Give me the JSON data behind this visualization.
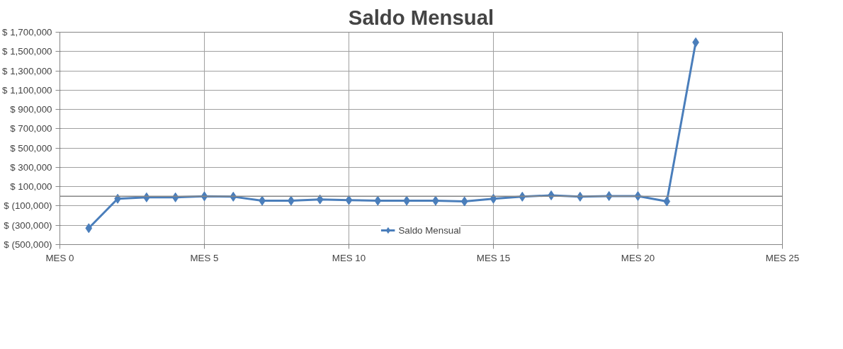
{
  "chart_data": {
    "type": "line",
    "title": "Saldo Mensual",
    "categories": [
      "MES 0",
      null,
      null,
      null,
      null,
      "MES 5",
      null,
      null,
      null,
      null,
      "MES 10",
      null,
      null,
      null,
      null,
      "MES 15",
      null,
      null,
      null,
      null,
      "MES 20",
      null,
      null,
      null,
      null,
      "MES 25"
    ],
    "series": [
      {
        "name": "Saldo Mensual",
        "color": "#4a7ebb",
        "values": [
          null,
          -330000,
          -25000,
          -11000,
          -11000,
          0,
          -4000,
          -46000,
          -46000,
          -32000,
          -39000,
          -46000,
          -46000,
          -46000,
          -53000,
          -25000,
          -4000,
          10000,
          -4000,
          3000,
          3000,
          -53000,
          1595000,
          null,
          null,
          null
        ]
      }
    ],
    "ylim": [
      -500000,
      1700000
    ],
    "yticks": [
      {
        "value": -500000,
        "label": "$ (500,000)"
      },
      {
        "value": -300000,
        "label": "$ (300,000)"
      },
      {
        "value": -100000,
        "label": "$ (100,000)"
      },
      {
        "value": 100000,
        "label": "$ 100,000"
      },
      {
        "value": 300000,
        "label": "$ 300,000"
      },
      {
        "value": 500000,
        "label": "$ 500,000"
      },
      {
        "value": 700000,
        "label": "$ 700,000"
      },
      {
        "value": 900000,
        "label": "$ 900,000"
      },
      {
        "value": 1100000,
        "label": "$ 1,100,000"
      },
      {
        "value": 1300000,
        "label": "$ 1,300,000"
      },
      {
        "value": 1500000,
        "label": "$ 1,500,000"
      },
      {
        "value": 1700000,
        "label": "$ 1,700,000"
      }
    ],
    "ref_lines": [
      {
        "axis": "y",
        "value": 0,
        "color": "#868686"
      }
    ],
    "grid": true,
    "legend": "bottom",
    "marker": "diamond",
    "line_style": "solid"
  }
}
